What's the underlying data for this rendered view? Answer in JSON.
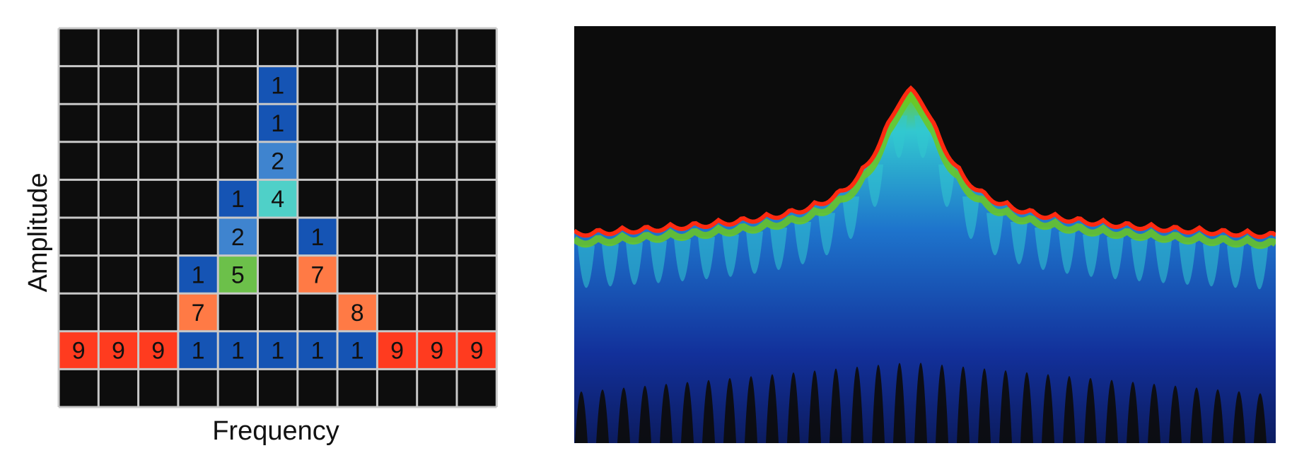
{
  "chart_data": [
    {
      "type": "heatmap",
      "xlabel": "Frequency",
      "ylabel": "Amplitude",
      "columns": 11,
      "rows": 10,
      "grid": true,
      "colors": {
        "empty": "#0d0d0d",
        "grid_line": "#c8c8c8",
        "1": "#1554b4",
        "2": "#3f84cf",
        "4": "#4fd0c8",
        "5": "#6cc04a",
        "7": "#ff7a45",
        "8": "#ff7a45",
        "9": "#ff3b1f"
      },
      "cells": [
        {
          "col": 5,
          "row": 1,
          "value": 1
        },
        {
          "col": 5,
          "row": 2,
          "value": 1
        },
        {
          "col": 5,
          "row": 3,
          "value": 2
        },
        {
          "col": 4,
          "row": 4,
          "value": 1
        },
        {
          "col": 5,
          "row": 4,
          "value": 4
        },
        {
          "col": 4,
          "row": 5,
          "value": 2
        },
        {
          "col": 6,
          "row": 5,
          "value": 1
        },
        {
          "col": 3,
          "row": 6,
          "value": 1
        },
        {
          "col": 4,
          "row": 6,
          "value": 5
        },
        {
          "col": 6,
          "row": 6,
          "value": 7
        },
        {
          "col": 3,
          "row": 7,
          "value": 7
        },
        {
          "col": 7,
          "row": 7,
          "value": 8
        },
        {
          "col": 0,
          "row": 8,
          "value": 9
        },
        {
          "col": 1,
          "row": 8,
          "value": 9
        },
        {
          "col": 2,
          "row": 8,
          "value": 9
        },
        {
          "col": 3,
          "row": 8,
          "value": 1
        },
        {
          "col": 4,
          "row": 8,
          "value": 1
        },
        {
          "col": 5,
          "row": 8,
          "value": 1
        },
        {
          "col": 6,
          "row": 8,
          "value": 1
        },
        {
          "col": 7,
          "row": 8,
          "value": 1
        },
        {
          "col": 8,
          "row": 8,
          "value": 9
        },
        {
          "col": 9,
          "row": 8,
          "value": 9
        },
        {
          "col": 10,
          "row": 8,
          "value": 9
        }
      ]
    },
    {
      "type": "heatmap",
      "colors": {
        "background": "#0c0c0c",
        "peak_edge": "#ff2a10",
        "band_green": "#6cc820",
        "band_cyan": "#32c8d0",
        "mid_blue": "#1e74cc",
        "deep_blue": "#12309a"
      }
    }
  ]
}
